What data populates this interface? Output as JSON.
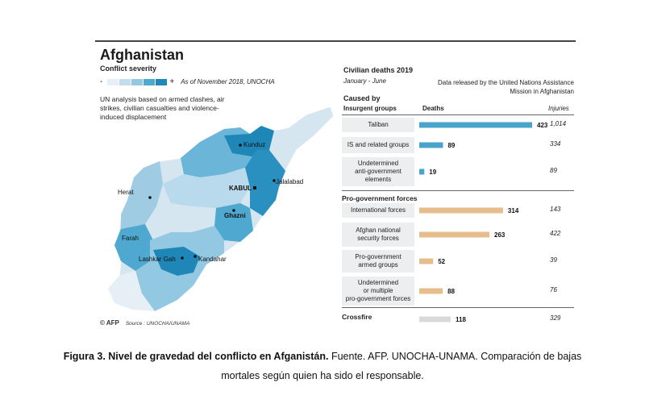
{
  "header": {
    "title": "Afghanistan",
    "severity_label": "Conflict severity",
    "scale_minus": "-",
    "scale_plus": "+",
    "scale_note": "As of November 2018, UNOCHA",
    "scale_colors": [
      "#e6eef6",
      "#c4ddee",
      "#93c8e2",
      "#4fa8cf",
      "#1f86b8"
    ],
    "analysis_note": "UN analysis based on armed clashes, air strikes, civilian casualties and violence-induced displacement"
  },
  "map": {
    "cities": [
      "Kunduz",
      "Herat",
      "KABUL",
      "Jalalabad",
      "Ghazni",
      "Farah",
      "Lashkar Gah",
      "Kandahar"
    ]
  },
  "footer": {
    "logo": "AFP",
    "source": "Source : UNOCHA/UNAMA"
  },
  "panel": {
    "title": "Civilian deaths 2019",
    "subtitle": "January - June",
    "note": "Data released by the United Nations Assistance Mission in Afghanistan",
    "caused_by": "Caused by",
    "group1": "Insurgent groups",
    "deaths_header": "Deaths",
    "injuries_header": "Injuries",
    "group2": "Pro-government forces",
    "group3": "Crossfire"
  },
  "colors": {
    "insurgent": "#4aa3cc",
    "progov": "#e8bd8c",
    "crossfire": "#d8dadc"
  },
  "chart_data": {
    "type": "bar",
    "title": "Civilian deaths 2019",
    "categories": [
      "Taliban",
      "IS and related groups",
      "Undetermined anti-government elements",
      "International forces",
      "Afghan national security forces",
      "Pro-government armed groups",
      "Undetermined or multiple pro-government forces",
      "Crossfire"
    ],
    "series": [
      {
        "name": "Deaths",
        "values": [
          423,
          89,
          19,
          314,
          263,
          52,
          88,
          118
        ]
      },
      {
        "name": "Injuries",
        "values": [
          1014,
          334,
          89,
          143,
          422,
          39,
          76,
          329
        ]
      }
    ],
    "groups": [
      "Insurgent groups",
      "Insurgent groups",
      "Insurgent groups",
      "Pro-government forces",
      "Pro-government forces",
      "Pro-government forces",
      "Pro-government forces",
      "Crossfire"
    ],
    "row_labels": [
      "Taliban",
      "IS and related groups",
      "Undetermined\nanti-government\nelements",
      "International forces",
      "Afghan national\nsecurity forces",
      "Pro-government\narmed groups",
      "Undetermined\nor multiple\npro-government forces",
      ""
    ],
    "injury_labels": [
      "1,014",
      "334",
      "89",
      "143",
      "422",
      "39",
      "76",
      "329"
    ]
  },
  "caption": {
    "bold": "Figura 3. Nivel de gravedad del conflicto en Afganistán.",
    "text": " Fuente. AFP. UNOCHA-UNAMA. Comparación de bajas mortales según quien ha sido el responsable."
  }
}
